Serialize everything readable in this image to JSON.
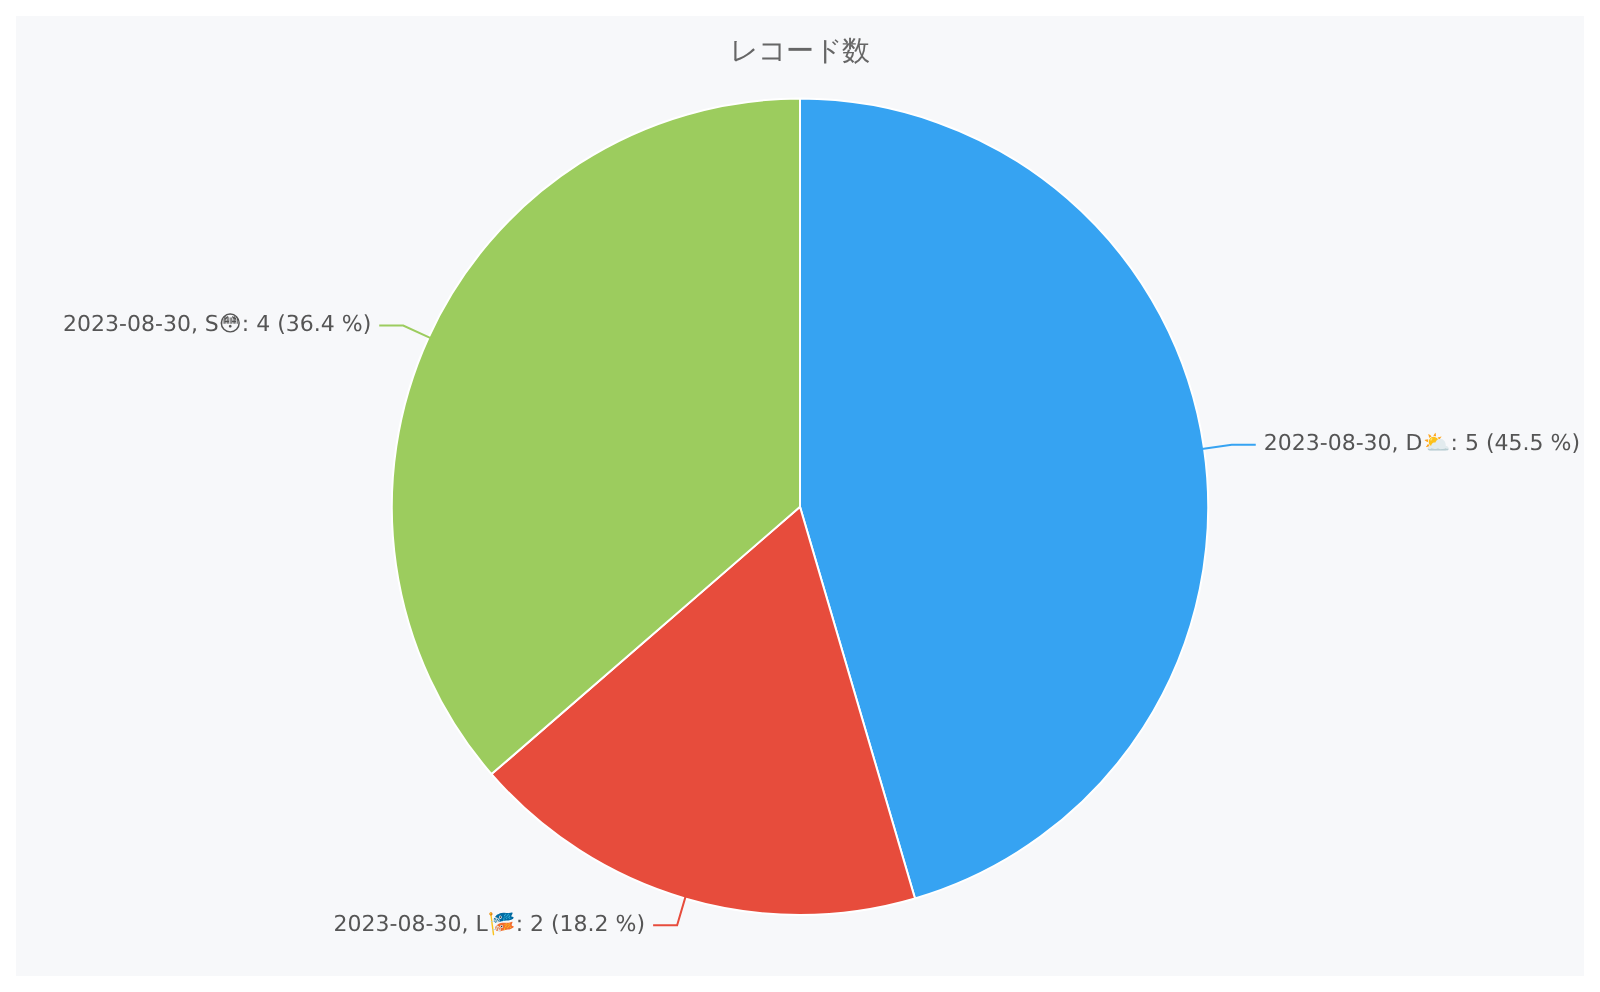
{
  "chart_data": {
    "type": "pie",
    "title": "レコード数",
    "categories": [
      "2023-08-30, D⛅",
      "2023-08-30, L🎏",
      "2023-08-30, S😳"
    ],
    "values": [
      5,
      2,
      4
    ],
    "colors": [
      "#36a3f2",
      "#e74c3c",
      "#9ccc5e"
    ],
    "value_labels": [
      "5 (45.5 %)",
      "2 (18.2 %)",
      "4 (36.4 %)"
    ],
    "legend": false
  }
}
